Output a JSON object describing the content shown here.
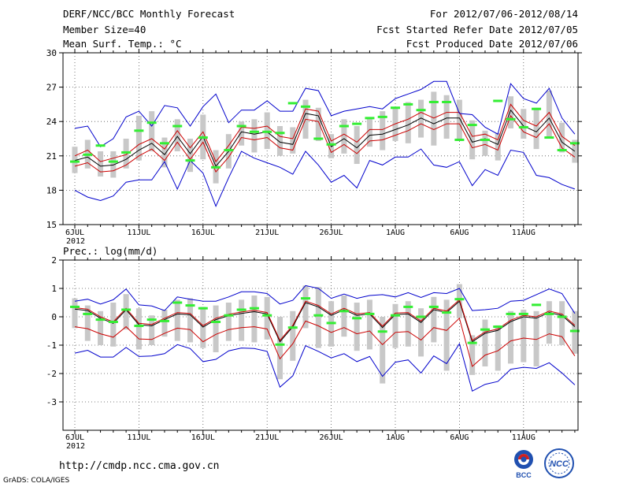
{
  "header": {
    "title": "DERF/NCC/BCC Monthly Forecast",
    "member_size": "Member Size=40",
    "variable": "Mean Surf. Temp.: °C",
    "period": "For 2012/07/06-2012/08/14",
    "started": "Fcst Started Refer Date 2012/07/05",
    "produced": "Fcst Produced Date 2012/07/06"
  },
  "footer": {
    "url": "http://cmdp.ncc.cma.gov.cn",
    "credit": "GrADS: COLA/IGES",
    "logo_left_label": "BCC",
    "logo_right_label": "NCC"
  },
  "colors": {
    "ensemble_mean": "#000000",
    "spread_band": "#cc0000",
    "envelope": "#0000cc",
    "observed_marker": "#33ee33",
    "box": "#c8c8c8"
  },
  "chart_data": [
    {
      "type": "line",
      "title": "Mean Surf. Temp.: °C",
      "ylabel": "Mean Surf. Temp.: °C",
      "ylim": [
        15,
        30
      ],
      "yticks": [
        15,
        18,
        21,
        24,
        27,
        30
      ],
      "xlim": [
        0,
        39
      ],
      "xtick_positions": [
        0,
        5,
        10,
        15,
        20,
        25,
        30,
        35
      ],
      "xtick_labels": [
        "6JUL",
        "11JUL",
        "16JUL",
        "21JUL",
        "26JUL",
        "1AUG",
        "6AUG",
        "11AUG"
      ],
      "year_label": "2012",
      "grid": true,
      "series": [
        {
          "name": "ensemble-mean",
          "values": [
            20.6,
            20.9,
            20.1,
            20.2,
            20.7,
            21.5,
            22.1,
            21.1,
            22.7,
            21.2,
            22.7,
            20.1,
            21.4,
            23.1,
            22.9,
            23.1,
            22.2,
            22.0,
            24.7,
            24.5,
            21.8,
            22.5,
            21.7,
            22.8,
            22.9,
            23.3,
            23.7,
            24.3,
            23.8,
            24.3,
            24.3,
            22.2,
            22.5,
            22.0,
            25.0,
            23.6,
            23.1,
            24.3,
            22.2,
            21.4,
            22.0,
            21.8
          ]
        },
        {
          "name": "upper-band",
          "values": [
            21.0,
            21.5,
            20.5,
            20.8,
            21.1,
            22.0,
            22.5,
            21.6,
            23.2,
            21.7,
            23.1,
            20.5,
            21.9,
            23.5,
            23.4,
            23.6,
            22.7,
            22.5,
            25.1,
            24.9,
            22.3,
            22.9,
            22.2,
            23.3,
            23.3,
            23.8,
            24.2,
            24.8,
            24.3,
            24.8,
            24.8,
            22.7,
            22.9,
            22.4,
            25.5,
            24.1,
            23.6,
            24.8,
            22.7,
            21.9,
            22.5,
            22.3
          ]
        },
        {
          "name": "lower-band",
          "values": [
            20.1,
            20.4,
            19.6,
            19.7,
            20.2,
            21.0,
            21.6,
            20.6,
            22.2,
            20.7,
            22.2,
            19.6,
            20.9,
            22.6,
            22.4,
            22.6,
            21.7,
            21.5,
            24.2,
            24.0,
            21.3,
            22.0,
            21.2,
            22.3,
            22.4,
            22.8,
            23.2,
            23.8,
            23.3,
            23.8,
            23.8,
            21.7,
            22.0,
            21.5,
            24.5,
            23.1,
            22.6,
            23.8,
            21.7,
            20.9,
            21.5,
            21.3
          ]
        },
        {
          "name": "max-envelope",
          "values": [
            23.4,
            23.6,
            21.8,
            22.5,
            24.4,
            24.9,
            23.6,
            25.4,
            25.2,
            23.6,
            25.3,
            26.4,
            23.9,
            25.0,
            25.0,
            25.8,
            24.9,
            24.9,
            26.9,
            26.7,
            24.5,
            24.9,
            25.1,
            25.3,
            25.1,
            26.0,
            26.4,
            26.8,
            27.5,
            27.5,
            24.7,
            24.6,
            23.5,
            22.9,
            27.3,
            26.0,
            25.6,
            26.9,
            24.3,
            22.9,
            23.5,
            23.3
          ]
        },
        {
          "name": "min-envelope",
          "values": [
            18.0,
            17.4,
            17.1,
            17.5,
            18.7,
            18.9,
            18.9,
            20.5,
            18.1,
            20.6,
            19.5,
            16.6,
            19.1,
            21.4,
            20.8,
            20.4,
            20.0,
            19.4,
            21.4,
            20.2,
            18.7,
            19.3,
            18.2,
            20.6,
            20.2,
            20.9,
            20.9,
            21.6,
            20.2,
            20.0,
            20.5,
            18.4,
            19.8,
            19.3,
            21.5,
            21.3,
            19.3,
            19.1,
            18.5,
            18.1,
            19.1,
            19.2
          ]
        },
        {
          "name": "observed",
          "values": [
            20.5,
            21.1,
            21.9,
            20.5,
            21.3,
            23.2,
            23.9,
            22.1,
            23.6,
            20.6,
            22.6,
            20.0,
            21.5,
            23.6,
            23.1,
            23.1,
            23.0,
            25.6,
            25.3,
            22.5,
            22.0,
            23.6,
            23.8,
            24.3,
            24.4,
            25.2,
            25.5,
            25.0,
            25.7,
            25.7,
            22.4,
            23.7,
            22.4,
            25.8,
            24.2,
            23.5,
            25.1,
            22.6,
            21.5,
            22.1,
            22.7,
            22.3
          ]
        }
      ],
      "boxes": {
        "low": [
          19.5,
          19.9,
          19.2,
          19.1,
          19.9,
          20.6,
          21.4,
          20.0,
          21.4,
          19.6,
          20.7,
          18.6,
          19.9,
          21.9,
          21.3,
          21.6,
          21.0,
          21.2,
          22.5,
          22.3,
          20.8,
          21.2,
          20.3,
          21.8,
          21.5,
          22.3,
          22.1,
          22.6,
          21.9,
          22.5,
          22.3,
          20.7,
          21.0,
          20.6,
          23.4,
          22.5,
          21.6,
          22.6,
          21.3,
          20.4,
          20.8,
          20.4
        ],
        "high": [
          21.8,
          22.4,
          21.4,
          21.4,
          22.5,
          24.5,
          24.9,
          22.6,
          24.2,
          22.5,
          24.6,
          21.5,
          22.9,
          24.0,
          24.2,
          24.8,
          23.6,
          23.5,
          25.9,
          25.2,
          22.9,
          24.2,
          23.6,
          24.3,
          24.9,
          25.2,
          25.7,
          25.9,
          26.6,
          26.3,
          25.9,
          24.1,
          23.2,
          23.0,
          26.2,
          25.1,
          25.2,
          26.7,
          23.9,
          22.4,
          23.5,
          23.2
        ]
      }
    },
    {
      "type": "line",
      "title": "Prec.: log(mm/d)",
      "ylabel": "Prec.: log(mm/d)",
      "ylim": [
        -4,
        2
      ],
      "yticks": [
        -3,
        -2,
        -1,
        0,
        1,
        2
      ],
      "xlim": [
        0,
        39
      ],
      "xtick_positions": [
        0,
        5,
        10,
        15,
        20,
        25,
        30,
        35
      ],
      "xtick_labels": [
        "6JUL",
        "11JUL",
        "16JUL",
        "21JUL",
        "26JUL",
        "1AUG",
        "6AUG",
        "11AUG"
      ],
      "year_label": "2012",
      "grid": true,
      "series": [
        {
          "name": "ensemble-mean",
          "values": [
            0.27,
            0.22,
            -0.05,
            -0.23,
            0.25,
            -0.28,
            -0.32,
            -0.1,
            0.1,
            0.07,
            -0.36,
            -0.1,
            0.04,
            0.12,
            0.18,
            0.1,
            -0.88,
            -0.35,
            0.5,
            0.35,
            0.05,
            0.25,
            0.05,
            0.1,
            -0.38,
            0.08,
            0.1,
            -0.2,
            0.25,
            0.15,
            0.55,
            -0.88,
            -0.58,
            -0.48,
            -0.17,
            0.0,
            -0.05,
            0.15,
            0.05,
            -0.35
          ]
        },
        {
          "name": "upper-band",
          "values": [
            0.32,
            0.27,
            0.0,
            -0.18,
            0.3,
            -0.23,
            -0.27,
            -0.05,
            0.15,
            0.12,
            -0.31,
            -0.05,
            0.09,
            0.17,
            0.23,
            0.15,
            -0.83,
            -0.3,
            0.55,
            0.4,
            0.1,
            0.3,
            0.1,
            0.15,
            -0.33,
            0.13,
            0.15,
            -0.15,
            0.3,
            0.2,
            0.6,
            -0.83,
            -0.53,
            -0.43,
            -0.12,
            0.05,
            0.0,
            0.2,
            0.1,
            -0.3
          ]
        },
        {
          "name": "lower-band",
          "values": [
            -0.35,
            -0.42,
            -0.6,
            -0.72,
            -0.35,
            -0.78,
            -0.8,
            -0.58,
            -0.4,
            -0.45,
            -0.88,
            -0.62,
            -0.45,
            -0.38,
            -0.35,
            -0.43,
            -1.48,
            -0.95,
            -0.15,
            -0.32,
            -0.55,
            -0.38,
            -0.6,
            -0.5,
            -0.98,
            -0.55,
            -0.52,
            -0.82,
            -0.38,
            -0.48,
            -0.05,
            -1.75,
            -1.35,
            -1.2,
            -0.85,
            -0.75,
            -0.8,
            -0.6,
            -0.7,
            -1.38
          ]
        },
        {
          "name": "max-envelope",
          "values": [
            0.55,
            0.62,
            0.45,
            0.6,
            0.98,
            0.42,
            0.38,
            0.22,
            0.7,
            0.62,
            0.55,
            0.55,
            0.7,
            0.88,
            0.88,
            0.82,
            0.45,
            0.58,
            1.1,
            1.0,
            0.65,
            0.8,
            0.65,
            0.75,
            0.78,
            0.7,
            0.85,
            0.68,
            0.85,
            0.82,
            1.0,
            0.22,
            0.25,
            0.3,
            0.55,
            0.58,
            0.78,
            0.98,
            0.82,
            0.12
          ]
        },
        {
          "name": "min-envelope",
          "values": [
            -1.28,
            -1.18,
            -1.42,
            -1.42,
            -1.08,
            -1.4,
            -1.38,
            -1.3,
            -0.98,
            -1.12,
            -1.58,
            -1.5,
            -1.2,
            -1.1,
            -1.12,
            -1.22,
            -2.48,
            -2.08,
            -1.02,
            -1.22,
            -1.45,
            -1.3,
            -1.58,
            -1.4,
            -2.1,
            -1.6,
            -1.52,
            -1.98,
            -1.38,
            -1.65,
            -0.95,
            -2.62,
            -2.38,
            -2.28,
            -1.85,
            -1.78,
            -1.82,
            -1.62,
            -1.98,
            -2.4
          ]
        },
        {
          "name": "observed",
          "values": [
            0.35,
            0.1,
            -0.1,
            -0.18,
            0.25,
            -0.32,
            -0.1,
            -0.15,
            0.5,
            0.4,
            0.3,
            -0.18,
            0.05,
            0.25,
            0.3,
            0.05,
            -0.98,
            -0.38,
            0.65,
            0.05,
            -0.22,
            0.2,
            -0.05,
            0.1,
            -0.52,
            0.05,
            0.35,
            0.0,
            0.35,
            0.15,
            0.62,
            -0.92,
            -0.45,
            -0.35,
            0.1,
            0.1,
            0.42,
            0.1,
            0.0,
            -0.5
          ]
        }
      ],
      "boxes": {
        "low": [
          -0.4,
          -0.85,
          -1.0,
          -1.05,
          -0.45,
          -1.15,
          -1.0,
          -0.7,
          -0.85,
          -0.9,
          -1.1,
          -1.25,
          -0.85,
          -0.85,
          -0.9,
          -0.8,
          -2.2,
          -1.55,
          -0.4,
          -1.1,
          -1.05,
          -0.7,
          -1.2,
          -1.15,
          -2.35,
          -1.1,
          -1.05,
          -1.4,
          -0.9,
          -1.9,
          -0.05,
          -2.05,
          -1.75,
          -1.9,
          -1.65,
          -1.6,
          -1.75,
          -0.95,
          -1.0,
          -1.3
        ],
        "high": [
          0.65,
          0.4,
          0.2,
          0.5,
          0.8,
          0.3,
          0.05,
          0.25,
          0.6,
          0.65,
          0.35,
          0.4,
          0.5,
          0.6,
          0.75,
          0.7,
          0.0,
          0.2,
          1.1,
          1.05,
          0.55,
          0.75,
          0.5,
          0.6,
          0.0,
          0.45,
          0.55,
          0.3,
          0.7,
          0.6,
          1.15,
          -0.65,
          -0.1,
          -0.3,
          0.2,
          0.25,
          0.2,
          0.55,
          0.55,
          0.2
        ]
      }
    }
  ]
}
